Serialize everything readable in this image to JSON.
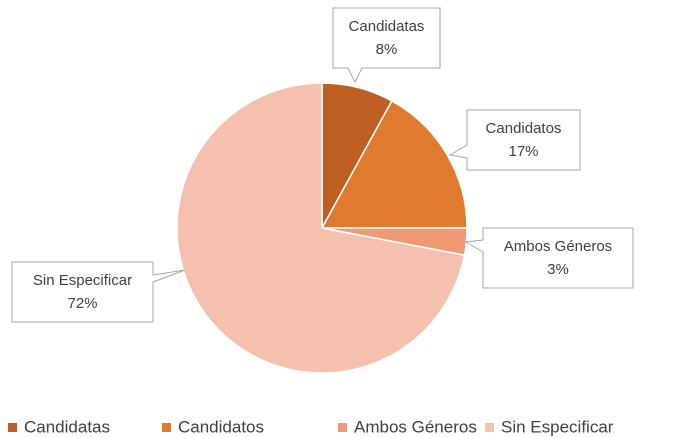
{
  "chart_data": {
    "type": "pie",
    "categories": [
      "Candidatas",
      "Candidatos",
      "Ambos Géneros",
      "Sin Especificar"
    ],
    "values": [
      8,
      17,
      3,
      72
    ],
    "value_labels": [
      "8%",
      "17%",
      "3%",
      "72%"
    ],
    "colors": [
      "#bd5f22",
      "#e07a2f",
      "#f09a73",
      "#f5c0ae"
    ],
    "legend": "bottom"
  }
}
